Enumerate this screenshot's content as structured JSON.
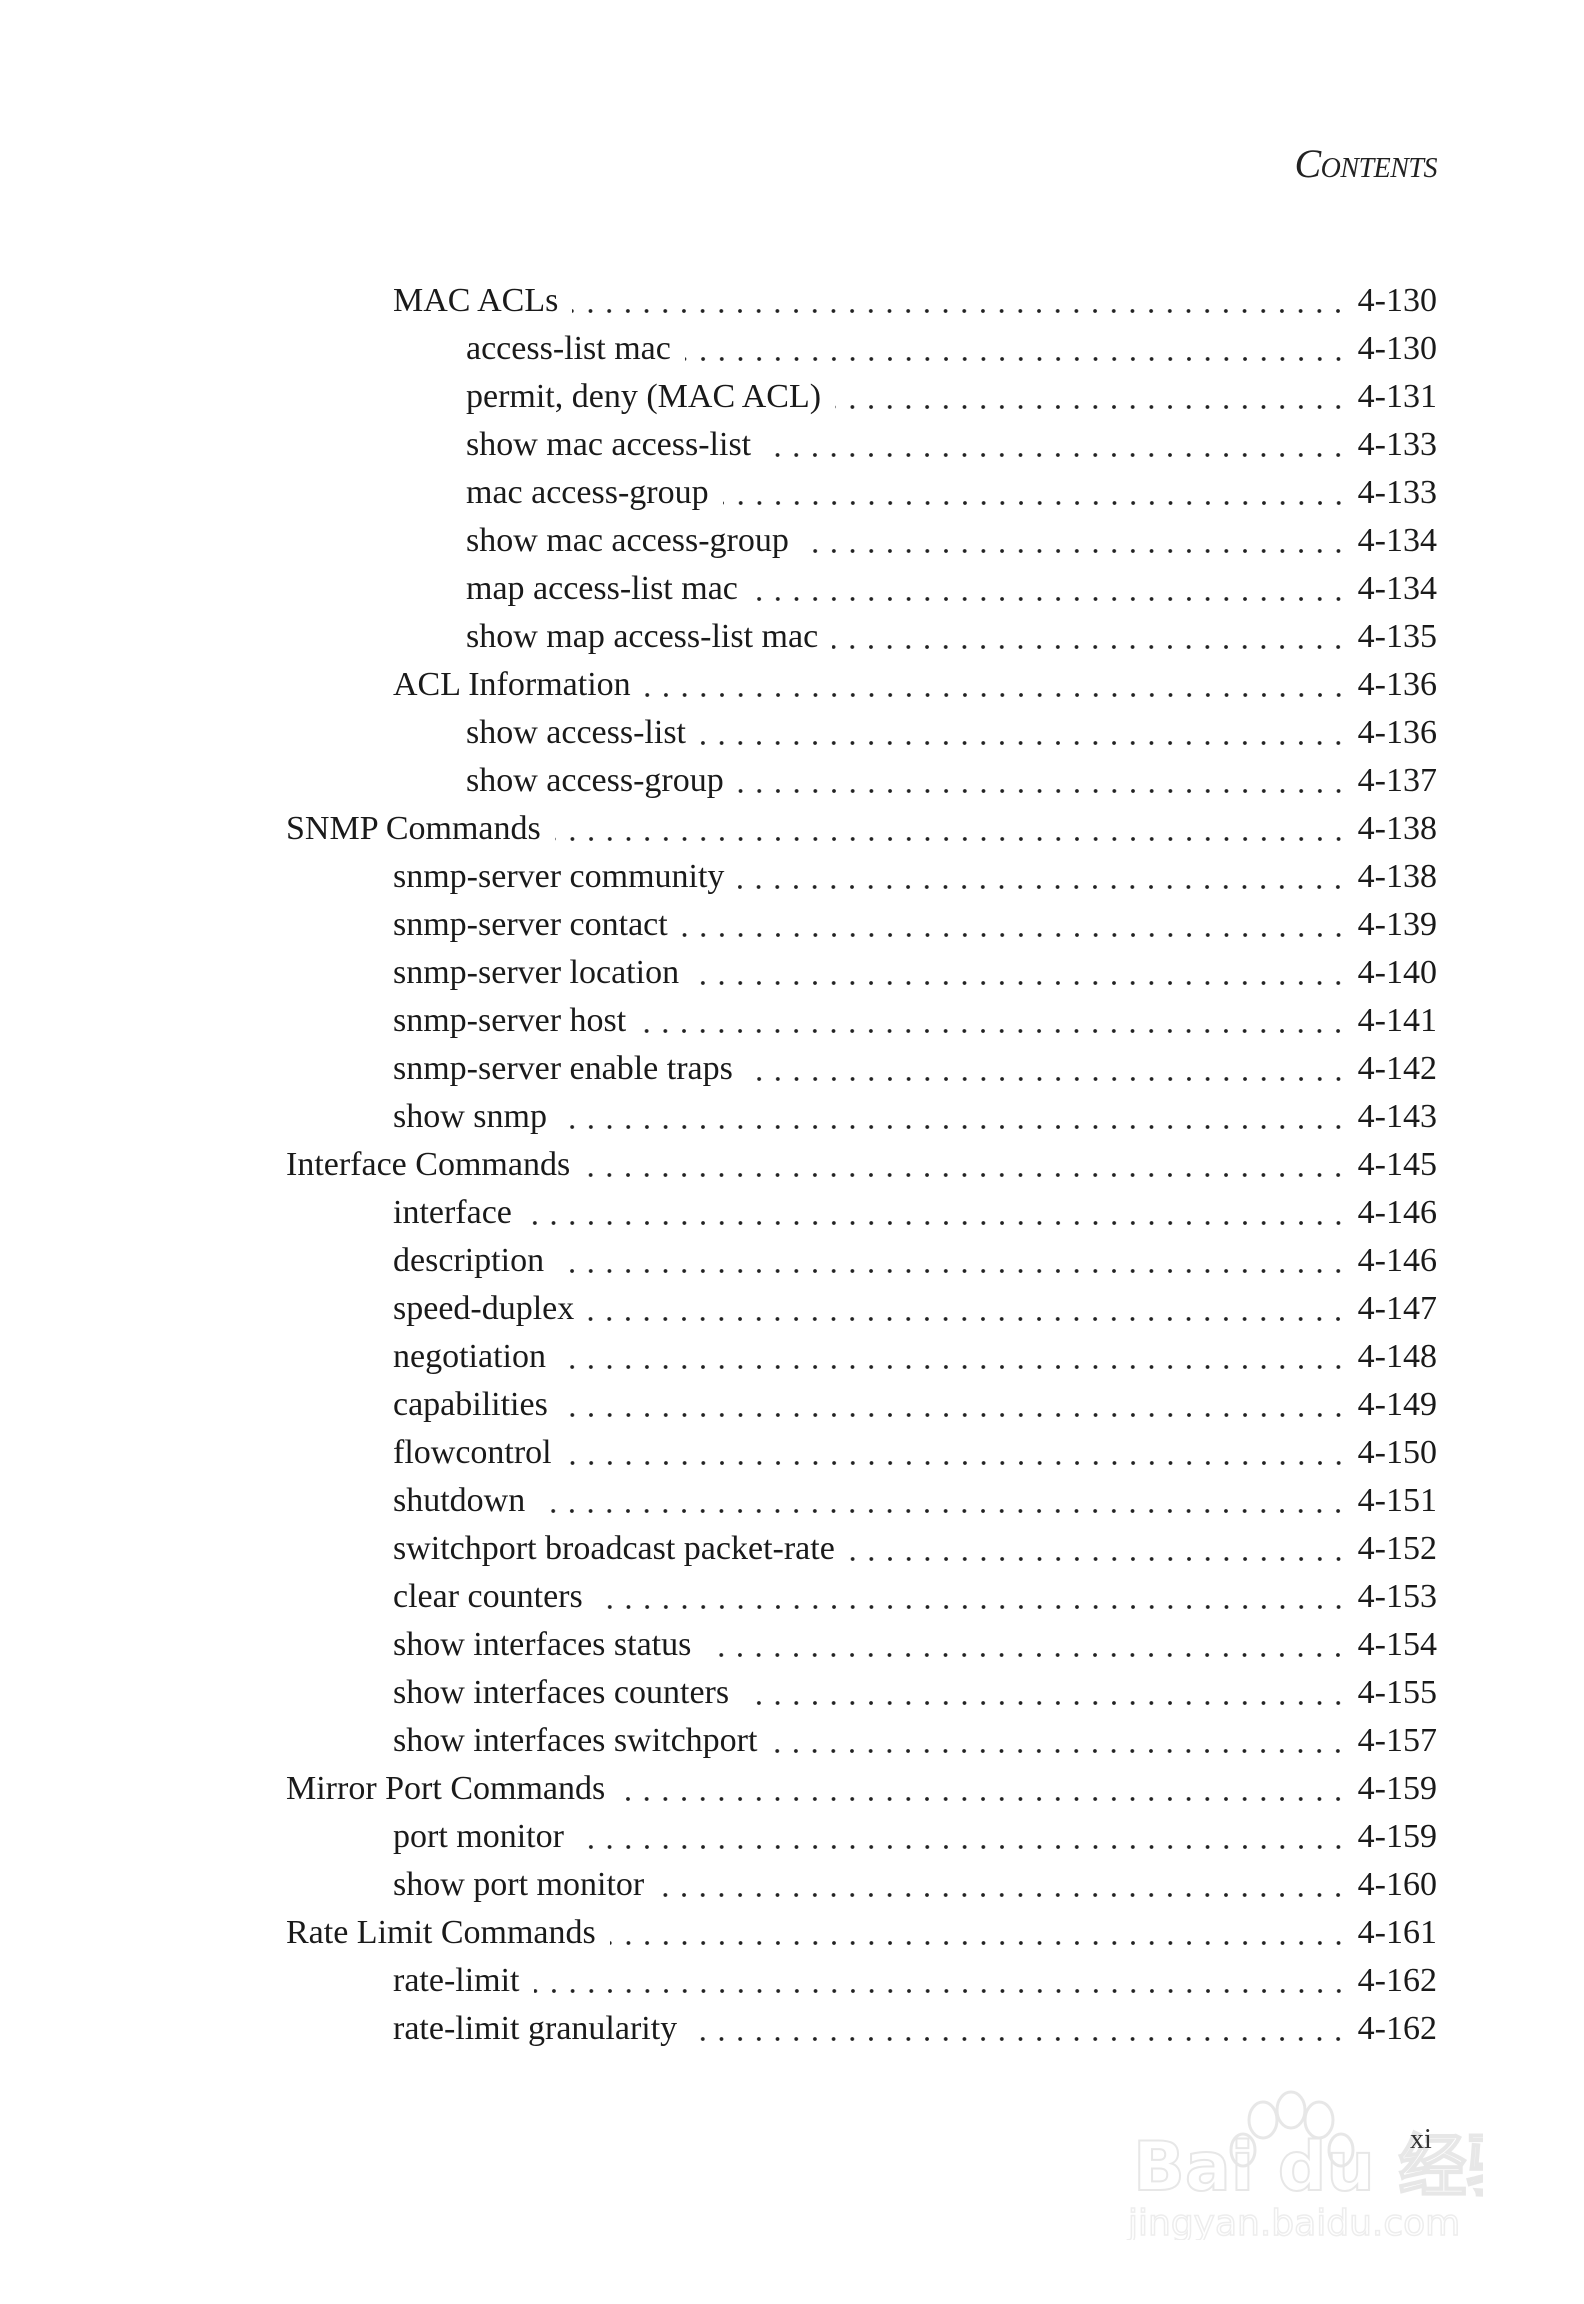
{
  "header": {
    "title": "Contents"
  },
  "entries": [
    {
      "level": 1,
      "label": "MAC ACLs",
      "page": "4-130"
    },
    {
      "level": 2,
      "label": "access-list mac",
      "page": "4-130"
    },
    {
      "level": 2,
      "label": "permit, deny (MAC ACL)",
      "page": "4-131"
    },
    {
      "level": 2,
      "label": "show mac access-list",
      "page": "4-133"
    },
    {
      "level": 2,
      "label": "mac access-group",
      "page": "4-133"
    },
    {
      "level": 2,
      "label": "show mac access-group",
      "page": "4-134"
    },
    {
      "level": 2,
      "label": "map access-list mac",
      "page": "4-134"
    },
    {
      "level": 2,
      "label": "show map access-list mac",
      "page": "4-135"
    },
    {
      "level": 1,
      "label": "ACL Information",
      "page": "4-136"
    },
    {
      "level": 2,
      "label": "show access-list",
      "page": "4-136"
    },
    {
      "level": 2,
      "label": "show access-group",
      "page": "4-137"
    },
    {
      "level": 0,
      "label": "SNMP Commands",
      "page": "4-138"
    },
    {
      "level": 1,
      "label": "snmp-server community",
      "page": "4-138"
    },
    {
      "level": 1,
      "label": "snmp-server contact",
      "page": "4-139"
    },
    {
      "level": 1,
      "label": "snmp-server location",
      "page": "4-140"
    },
    {
      "level": 1,
      "label": "snmp-server host",
      "page": "4-141"
    },
    {
      "level": 1,
      "label": "snmp-server enable traps",
      "page": "4-142"
    },
    {
      "level": 1,
      "label": "show snmp",
      "page": "4-143"
    },
    {
      "level": 0,
      "label": "Interface Commands",
      "page": "4-145"
    },
    {
      "level": 1,
      "label": "interface",
      "page": "4-146"
    },
    {
      "level": 1,
      "label": "description",
      "page": "4-146"
    },
    {
      "level": 1,
      "label": "speed-duplex",
      "page": "4-147"
    },
    {
      "level": 1,
      "label": "negotiation",
      "page": "4-148"
    },
    {
      "level": 1,
      "label": "capabilities",
      "page": "4-149"
    },
    {
      "level": 1,
      "label": "flowcontrol",
      "page": "4-150"
    },
    {
      "level": 1,
      "label": "shutdown",
      "page": "4-151"
    },
    {
      "level": 1,
      "label": "switchport broadcast packet-rate",
      "page": "4-152"
    },
    {
      "level": 1,
      "label": "clear counters",
      "page": "4-153"
    },
    {
      "level": 1,
      "label": "show interfaces status",
      "page": "4-154"
    },
    {
      "level": 1,
      "label": "show interfaces counters",
      "page": "4-155"
    },
    {
      "level": 1,
      "label": "show interfaces switchport",
      "page": "4-157"
    },
    {
      "level": 0,
      "label": "Mirror Port Commands",
      "page": "4-159"
    },
    {
      "level": 1,
      "label": "port monitor",
      "page": "4-159"
    },
    {
      "level": 1,
      "label": "show port monitor",
      "page": "4-160"
    },
    {
      "level": 0,
      "label": "Rate Limit Commands",
      "page": "4-161"
    },
    {
      "level": 1,
      "label": "rate-limit",
      "page": "4-162"
    },
    {
      "level": 1,
      "label": "rate-limit granularity",
      "page": "4-162"
    }
  ],
  "footer": {
    "page_number": "xi"
  },
  "watermark": {
    "text": "Baidu经验 jingyan.baidu.com"
  }
}
